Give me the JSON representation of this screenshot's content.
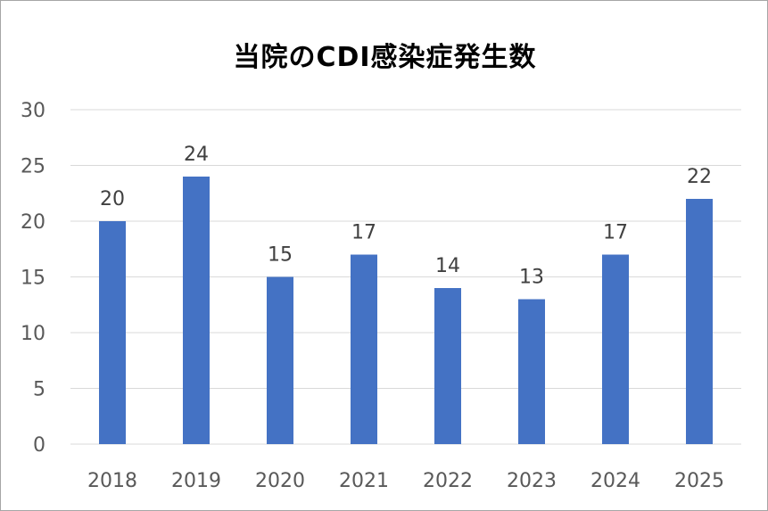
{
  "chart_data": {
    "type": "bar",
    "title": "当院のCDI感染症発生数",
    "xlabel": "",
    "ylabel": "",
    "categories": [
      "2018",
      "2019",
      "2020",
      "2021",
      "2022",
      "2023",
      "2024",
      "2025"
    ],
    "values": [
      20,
      24,
      15,
      17,
      14,
      13,
      17,
      22
    ],
    "ylim": [
      0,
      30
    ],
    "yticks": [
      0,
      5,
      10,
      15,
      20,
      25,
      30
    ],
    "grid": true,
    "legend": "none",
    "data_labels": true,
    "bar_color": "#4472c4",
    "grid_color": "#d9d9d9",
    "text_color": "#595959"
  }
}
